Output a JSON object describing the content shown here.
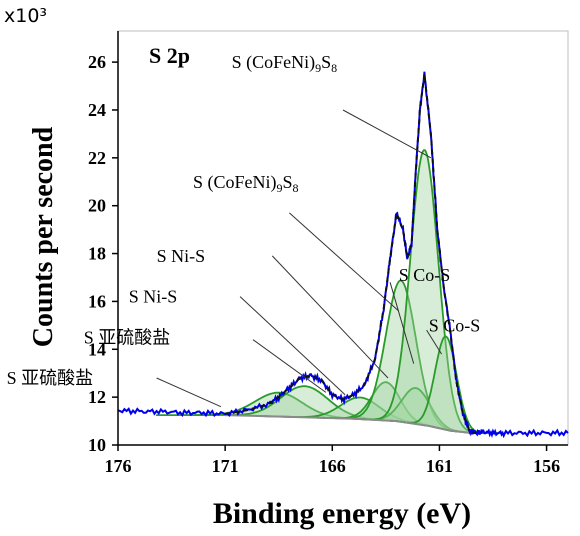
{
  "chart_data": {
    "type": "line",
    "panel_label": "S 2p",
    "multiplier_label": "x10³",
    "xlabel": "Binding energy (eV)",
    "ylabel": "Counts per second",
    "xlim": [
      176,
      155
    ],
    "ylim": [
      10,
      27.3
    ],
    "x_ticks": [
      176,
      171,
      166,
      161,
      156
    ],
    "y_ticks": [
      10,
      12,
      14,
      16,
      18,
      20,
      22,
      24,
      26
    ],
    "grid": false,
    "colors": {
      "raw": "#0000ee",
      "fit": "#111111",
      "component_line": "#2a9a2a",
      "component_fill": "#9fd49f",
      "background": "#8a8a8a"
    },
    "raw_data": {
      "x": [
        176,
        175,
        174,
        173,
        172,
        171,
        170,
        169,
        168.5,
        168,
        167.5,
        167,
        166.5,
        166,
        165.5,
        165,
        164.5,
        164,
        163.6,
        163.3,
        163,
        162.7,
        162.5,
        162.3,
        162.1,
        161.9,
        161.7,
        161.4,
        161.1,
        160.8,
        160.5,
        160.2,
        159.9,
        159.6,
        159.3,
        159,
        158.5,
        158,
        157,
        156,
        155
      ],
      "y": [
        11.45,
        11.4,
        11.4,
        11.35,
        11.35,
        11.3,
        11.45,
        11.7,
        12.0,
        12.4,
        12.8,
        12.9,
        12.7,
        12.1,
        11.9,
        12.1,
        12.5,
        13.6,
        15.7,
        17.8,
        19.7,
        19.0,
        17.8,
        18.4,
        21.5,
        24.1,
        25.5,
        23.0,
        19.0,
        16.6,
        14.8,
        12.6,
        11.3,
        10.6,
        10.5,
        10.55,
        10.5,
        10.5,
        10.5,
        10.5,
        10.5
      ]
    },
    "fit_envelope": {
      "x": [
        171,
        170,
        169,
        168.5,
        168,
        167.5,
        167,
        166.5,
        166,
        165.5,
        165,
        164.5,
        164,
        163.6,
        163.3,
        163,
        162.7,
        162.5,
        162.3,
        162.1,
        161.9,
        161.7,
        161.4,
        161.1,
        160.8,
        160.5,
        160.2,
        159.9,
        159.6,
        159.3
      ],
      "y": [
        11.3,
        11.45,
        11.7,
        12.0,
        12.4,
        12.8,
        12.9,
        12.7,
        12.1,
        11.9,
        12.1,
        12.5,
        13.6,
        15.7,
        17.8,
        19.7,
        19.0,
        17.8,
        18.4,
        21.5,
        24.1,
        25.5,
        23.0,
        19.0,
        16.6,
        14.8,
        12.6,
        11.3,
        10.6,
        10.5
      ]
    },
    "background_line": {
      "x": [
        171,
        169,
        167,
        165,
        163,
        161.5,
        160.5,
        159.5
      ],
      "y": [
        11.25,
        11.2,
        11.15,
        11.1,
        11.0,
        10.8,
        10.6,
        10.5
      ]
    },
    "components": [
      {
        "center": 168.5,
        "height": 1.0,
        "width": 2.2
      },
      {
        "center": 167.3,
        "height": 1.3,
        "width": 2.2
      },
      {
        "center": 164.7,
        "height": 0.9,
        "width": 1.8
      },
      {
        "center": 163.5,
        "height": 1.6,
        "width": 1.3
      },
      {
        "center": 162.8,
        "height": 5.9,
        "width": 1.4
      },
      {
        "center": 162.1,
        "height": 1.5,
        "width": 1.3
      },
      {
        "center": 161.7,
        "height": 11.5,
        "width": 1.3
      },
      {
        "center": 160.7,
        "height": 3.9,
        "width": 1.0
      }
    ],
    "annotations": [
      {
        "text": "S (CoFeNi)",
        "sub": "9",
        "mid": "S",
        "sub2": "8",
        "label_x": 170.7,
        "label_y": 26.0,
        "line_from": [
          165.5,
          24.0
        ],
        "line_to": [
          161.4,
          22.0
        ]
      },
      {
        "text": "S (CoFeNi)",
        "sub": "9",
        "mid": "S",
        "sub2": "8",
        "label_x": 172.5,
        "label_y": 21.0,
        "line_from": [
          168.0,
          19.7
        ],
        "line_to": [
          162.9,
          15.6
        ]
      },
      {
        "text": "S Ni-S",
        "label_x": 174.2,
        "label_y": 17.9,
        "line_from": [
          168.8,
          17.9
        ],
        "line_to": [
          163.4,
          12.8
        ]
      },
      {
        "text": "S Ni-S",
        "label_x": 175.5,
        "label_y": 16.2,
        "line_from": [
          170.3,
          16.2
        ],
        "line_to": [
          165.4,
          12.1
        ]
      },
      {
        "text": "S 亚硫酸盐",
        "label_x": 177.6,
        "label_y": 14.5,
        "line_from": [
          169.7,
          14.4
        ],
        "line_to": [
          166.3,
          12.2
        ]
      },
      {
        "text": "S 亚硫酸盐",
        "label_x": 181.2,
        "label_y": 12.8,
        "line_from": [
          174.2,
          12.8
        ],
        "line_to": [
          171.2,
          11.6
        ]
      },
      {
        "text": "S Co-S",
        "label_x": 162.9,
        "label_y": 17.1,
        "line_from": [
          163.3,
          16.8
        ],
        "line_to": [
          162.2,
          13.4
        ]
      },
      {
        "text": "S Co-S",
        "label_x": 161.5,
        "label_y": 15.0,
        "line_from": [
          161.6,
          14.8
        ],
        "line_to": [
          160.9,
          13.8
        ]
      }
    ]
  }
}
